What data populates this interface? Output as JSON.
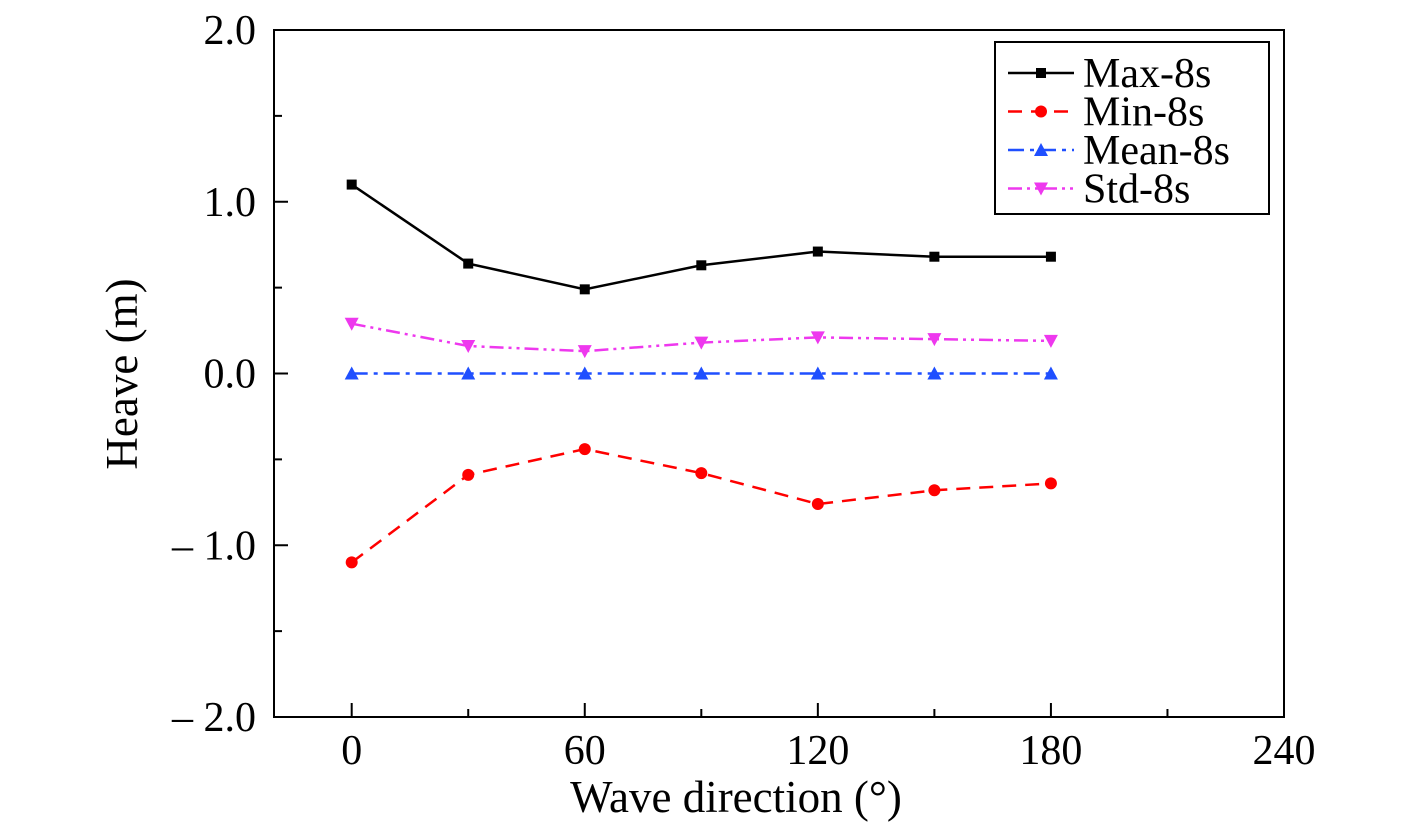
{
  "chart_data": {
    "type": "line",
    "title": "",
    "xlabel": "Wave direction (°)",
    "ylabel": "Heave (m)",
    "xlim": [
      -20,
      240
    ],
    "ylim": [
      -2.0,
      2.0
    ],
    "xticks": [
      0,
      60,
      120,
      180,
      240
    ],
    "xtick_labels": [
      "0",
      "60",
      "120",
      "180",
      "240"
    ],
    "yticks": [
      -2.0,
      -1.0,
      0.0,
      1.0,
      2.0
    ],
    "ytick_labels": [
      "– 2.0",
      "– 1.0",
      "0.0",
      "1.0",
      "2.0"
    ],
    "x": [
      0,
      30,
      60,
      90,
      120,
      150,
      180
    ],
    "grid": false,
    "legend_position": "top-right",
    "series": [
      {
        "name": "Max-8s",
        "values": [
          1.1,
          0.64,
          0.49,
          0.63,
          0.71,
          0.68,
          0.68
        ],
        "color": "#000000",
        "dash": "solid",
        "marker": "square"
      },
      {
        "name": "Min-8s",
        "values": [
          -1.1,
          -0.59,
          -0.44,
          -0.58,
          -0.76,
          -0.68,
          -0.64
        ],
        "color": "#ff0000",
        "dash": "dash",
        "marker": "circle"
      },
      {
        "name": "Mean-8s",
        "values": [
          0.0,
          0.0,
          0.0,
          0.0,
          0.0,
          0.0,
          0.0
        ],
        "color": "#1f4fff",
        "dash": "dashdot",
        "marker": "triangle-up"
      },
      {
        "name": "Std-8s",
        "values": [
          0.29,
          0.16,
          0.13,
          0.18,
          0.21,
          0.2,
          0.19
        ],
        "color": "#ee38ee",
        "dash": "dashdotdot",
        "marker": "triangle-down"
      }
    ]
  }
}
